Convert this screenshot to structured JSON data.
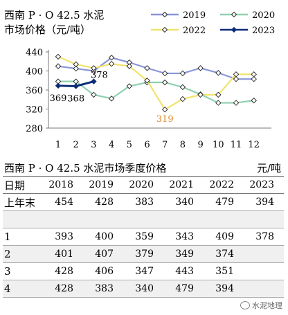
{
  "chart_data": {
    "type": "line",
    "title": "西南 P · O 42.5 水泥市场价格（元/吨）",
    "title_line1": "西南 P · O 42.5 水泥",
    "title_line2": "市场价格（元/吨）",
    "categories": [
      "1",
      "2",
      "3",
      "4",
      "5",
      "6",
      "7",
      "8",
      "9",
      "10",
      "11",
      "12"
    ],
    "ylim": [
      280,
      440
    ],
    "yticks": [
      "280",
      "320",
      "360",
      "400",
      "440"
    ],
    "grid": false,
    "legend_position": "top-right",
    "series": [
      {
        "name": "2019",
        "color": "#8a96d8",
        "values": [
          410,
          405,
          400,
          428,
          418,
          406,
          395,
          395,
          406,
          396,
          383,
          383
        ]
      },
      {
        "name": "2020",
        "color": "#8fd1b0",
        "values": [
          378,
          378,
          350,
          342,
          368,
          376,
          376,
          366,
          351,
          333,
          333,
          338
        ]
      },
      {
        "name": "2022",
        "color": "#f1e36d",
        "values": [
          430,
          414,
          406,
          415,
          410,
          380,
          319,
          341,
          350,
          350,
          393,
          393
        ]
      },
      {
        "name": "2023",
        "color": "#0c2c78",
        "values": [
          369,
          368,
          378,
          null,
          null,
          null,
          null,
          null,
          null,
          null,
          null,
          null
        ]
      }
    ],
    "annotations": [
      {
        "series": "2023",
        "index": 0,
        "text": "369",
        "color": "#000000"
      },
      {
        "series": "2023",
        "index": 1,
        "text": "368",
        "color": "#000000"
      },
      {
        "series": "2023",
        "index": 2,
        "text": "378",
        "color": "#000000"
      },
      {
        "series": "2022",
        "index": 6,
        "text": "319",
        "color": "#e08a2a"
      }
    ]
  },
  "table": {
    "title": "西南 P · O 42.5 水泥市场季度价格",
    "unit": "元/吨",
    "header": [
      "日期",
      "2018",
      "2019",
      "2020",
      "2021",
      "2022",
      "2023"
    ],
    "rows": [
      {
        "label": "上年末",
        "values": [
          "454",
          "428",
          "383",
          "340",
          "479",
          "394"
        ]
      },
      {
        "label": "",
        "values": [
          "",
          "",
          "",
          "",
          "",
          ""
        ]
      },
      {
        "label": "1",
        "values": [
          "393",
          "400",
          "359",
          "343",
          "409",
          "378"
        ]
      },
      {
        "label": "2",
        "values": [
          "401",
          "407",
          "379",
          "349",
          "374",
          ""
        ]
      },
      {
        "label": "3",
        "values": [
          "428",
          "406",
          "347",
          "443",
          "351",
          ""
        ]
      },
      {
        "label": "4",
        "values": [
          "428",
          "383",
          "340",
          "479",
          "394",
          ""
        ]
      }
    ]
  },
  "watermark": "水泥地理"
}
